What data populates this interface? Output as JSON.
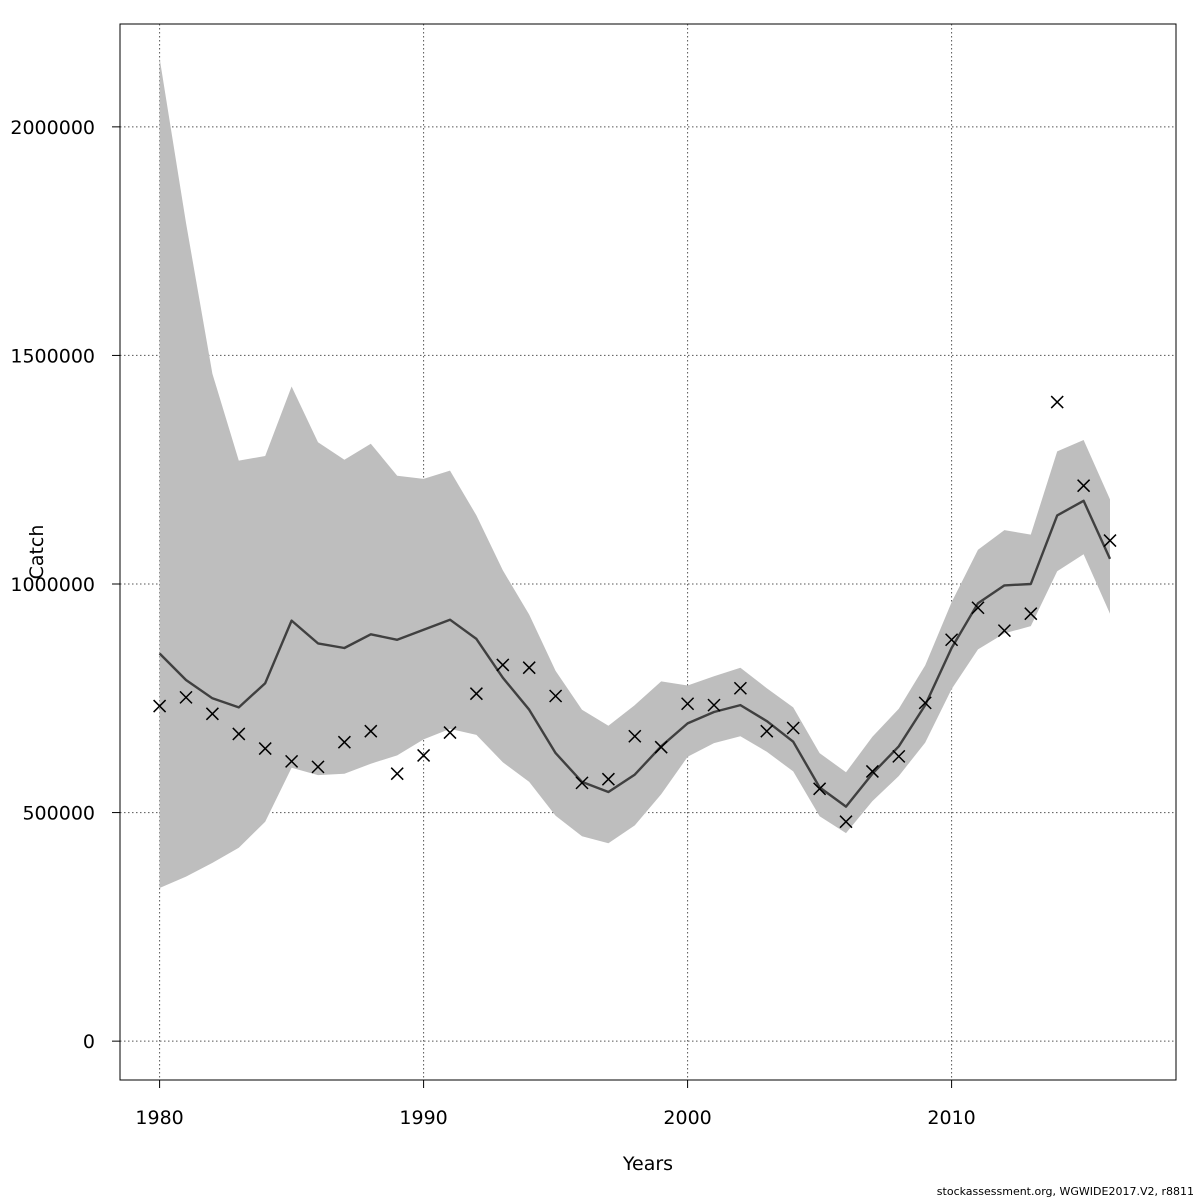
{
  "chart_data": {
    "type": "line",
    "xlabel": "Years",
    "ylabel": "Catch",
    "xlim": [
      1978.5,
      2018.5
    ],
    "ylim": [
      -85000,
      2225000
    ],
    "x_ticks": [
      1980,
      1990,
      2000,
      2010
    ],
    "y_ticks": [
      0,
      500000,
      1000000,
      1500000,
      2000000
    ],
    "grid": true,
    "colors": {
      "band": "#bebebe",
      "line": "#404040",
      "points": "#000000",
      "grid": "#555555"
    },
    "x": [
      1980,
      1981,
      1982,
      1983,
      1984,
      1985,
      1986,
      1987,
      1988,
      1989,
      1990,
      1991,
      1992,
      1993,
      1994,
      1995,
      1996,
      1997,
      1998,
      1999,
      2000,
      2001,
      2002,
      2003,
      2004,
      2005,
      2006,
      2007,
      2008,
      2009,
      2010,
      2011,
      2012,
      2013,
      2014,
      2015,
      2016
    ],
    "series": [
      {
        "type": "line",
        "values": [
          848000,
          790000,
          750000,
          730000,
          783000,
          920000,
          870000,
          860000,
          890000,
          878000,
          900000,
          922000,
          880000,
          795000,
          725000,
          630000,
          567000,
          545000,
          583000,
          645000,
          695000,
          720000,
          735000,
          700000,
          655000,
          555000,
          513000,
          585000,
          645000,
          735000,
          860000,
          958000,
          997000,
          1000000,
          1150000,
          1182000,
          1055000
        ]
      },
      {
        "type": "band",
        "upper": [
          2150000,
          1790000,
          1460000,
          1270000,
          1280000,
          1432000,
          1310000,
          1272000,
          1307000,
          1237000,
          1230000,
          1248000,
          1150000,
          1030000,
          933000,
          810000,
          725000,
          690000,
          735000,
          787000,
          778000,
          798000,
          817000,
          772000,
          730000,
          630000,
          588000,
          666000,
          727000,
          822000,
          960000,
          1075000,
          1118000,
          1108000,
          1290000,
          1315000,
          1185000
        ],
        "lower": [
          335000,
          360000,
          390000,
          423000,
          480000,
          598000,
          582000,
          585000,
          607000,
          625000,
          660000,
          683000,
          670000,
          610000,
          567000,
          493000,
          448000,
          433000,
          472000,
          540000,
          622000,
          652000,
          667000,
          633000,
          590000,
          492000,
          455000,
          525000,
          580000,
          653000,
          770000,
          857000,
          892000,
          908000,
          1028000,
          1065000,
          935000
        ]
      },
      {
        "type": "points",
        "marker": "x",
        "values": [
          733000,
          752000,
          716000,
          672000,
          640000,
          612000,
          600000,
          654000,
          678000,
          585000,
          625000,
          675000,
          760000,
          823000,
          817000,
          755000,
          565000,
          573000,
          667000,
          643000,
          738000,
          735000,
          772000,
          678000,
          685000,
          552000,
          480000,
          590000,
          623000,
          740000,
          878000,
          948000,
          898000,
          935000,
          1398000,
          1215000,
          1095000
        ]
      }
    ]
  },
  "credit": "stockassessment.org, WGWIDE2017.V2, r8811"
}
